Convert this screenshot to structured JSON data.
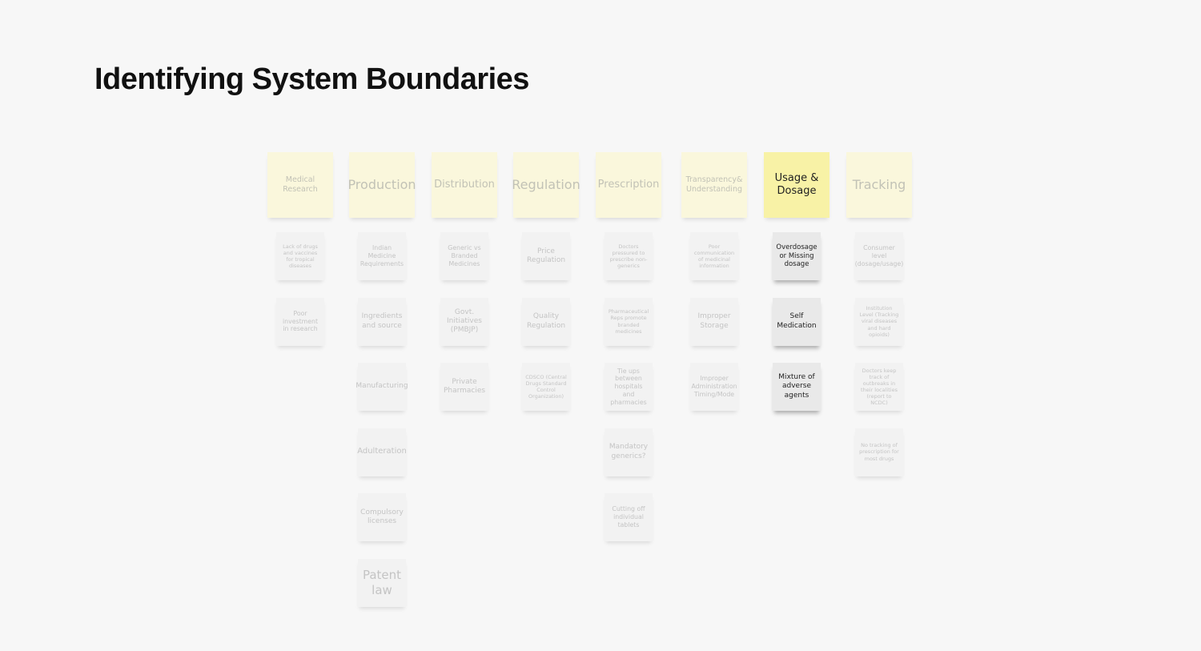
{
  "title": "Identifying System Boundaries",
  "columns": [
    {
      "header": "Medical Research",
      "notes": [
        "Lack of drugs and vaccines for tropical diseases",
        "Poor investment in research"
      ]
    },
    {
      "header": "Production",
      "notes": [
        "Indian Medicine Requirements",
        "Ingredients and source",
        "Manufacturing",
        "Adulteration",
        "Compulsory licenses",
        "Patent law"
      ]
    },
    {
      "header": "Distribution",
      "notes": [
        "Generic vs Branded Medicines",
        "Govt. Initiatives (PMBJP)",
        "Private Pharmacies"
      ]
    },
    {
      "header": "Regulation",
      "notes": [
        "Price Regulation",
        "Quality Regulation",
        "CDSCO (Central Drugs Standard Control Organization)"
      ]
    },
    {
      "header": "Prescription",
      "notes": [
        "Doctors pressured to prescribe non-generics",
        "Pharmaceutical Reps promote branded medicines",
        "Tie ups between hospitals and pharmacies",
        "Mandatory generics?",
        "Cutting off individual tablets"
      ]
    },
    {
      "header": "Transparency& Understanding",
      "notes": [
        "Poor communication of medicinal information",
        "Improper Storage",
        "Improper Administration Timing/Mode"
      ]
    },
    {
      "header": "Usage & Dosage",
      "notes": [
        "Overdosage or Missing dosage",
        "Self Medication",
        "Mixture of adverse agents"
      ]
    },
    {
      "header": "Tracking",
      "notes": [
        "Consumer level (dosage/usage)",
        "Institution Level (Tracking viral diseases and hard opioids)",
        "Doctors keep track of outbreaks in their localities (report to NCDC)",
        "No tracking of prescription for most drugs"
      ]
    }
  ]
}
